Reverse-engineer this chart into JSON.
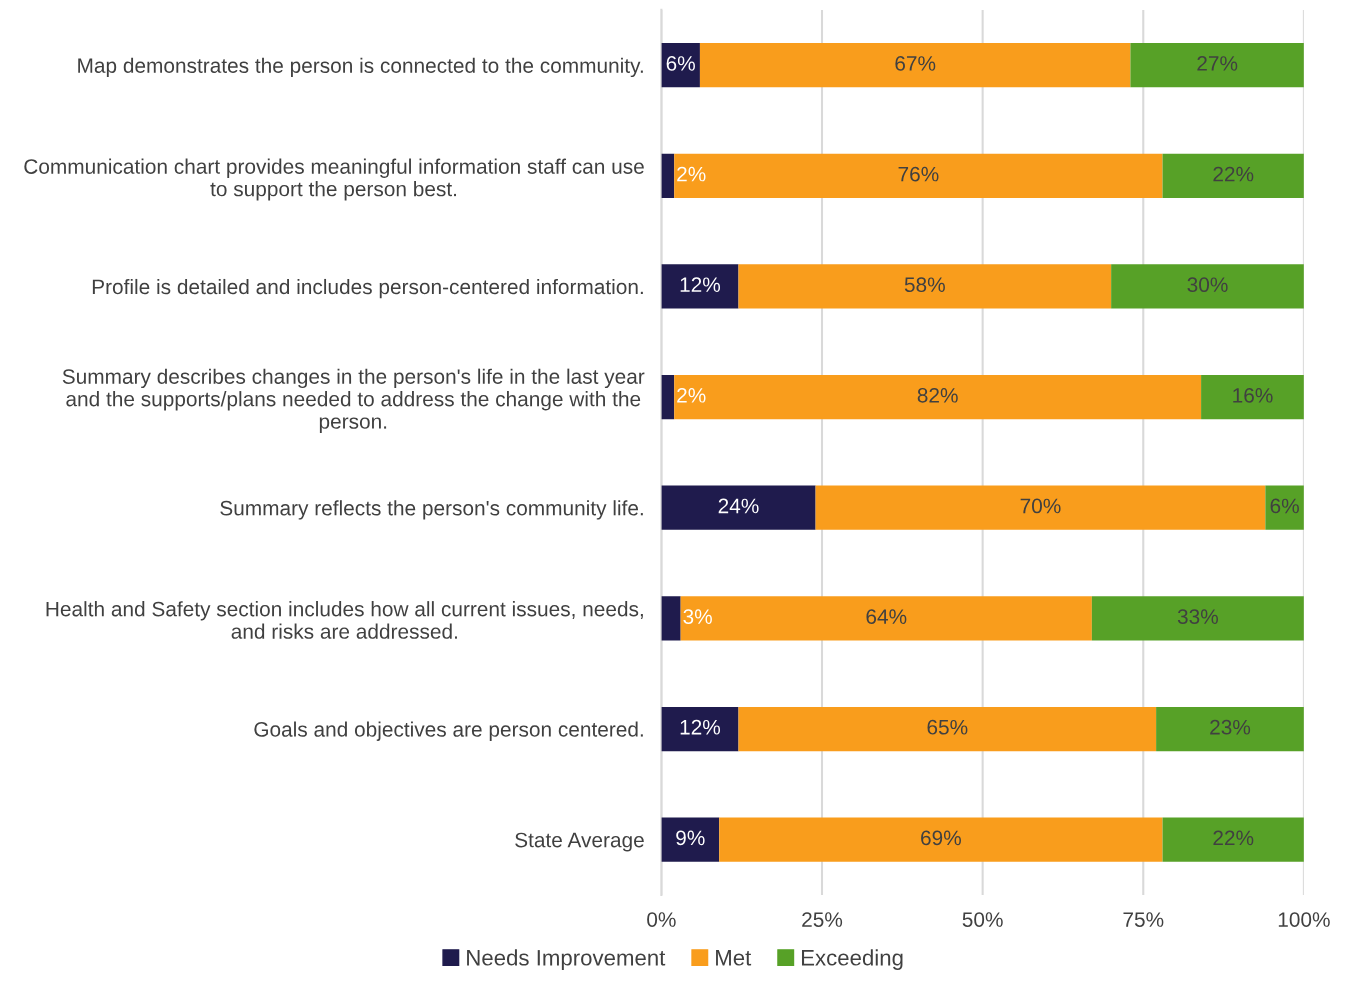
{
  "chart_data": {
    "type": "bar",
    "orientation": "horizontal",
    "stacked": true,
    "categories": [
      "Map demonstrates the person is connected to the community.",
      "Communication chart provides meaningful information staff can use to support the person best.",
      "Profile is detailed and includes person-centered information.",
      "Summary describes changes in the person's life in the last year and the supports/plans needed to address the change with the person.",
      "Summary reflects the person's community life.",
      "Health and Safety section includes how all current issues, needs, and risks are addressed.",
      "Goals and objectives are person centered.",
      "State Average"
    ],
    "series": [
      {
        "name": "Needs Improvement",
        "color": "#1f1b4d",
        "values": [
          6,
          2,
          12,
          2,
          24,
          3,
          12,
          9
        ],
        "value_labels": [
          "6%",
          "2%",
          "12%",
          "2%",
          "24%",
          "3%",
          "12%",
          "9%"
        ]
      },
      {
        "name": "Met",
        "color": "#f99d1c",
        "values": [
          67,
          76,
          58,
          82,
          70,
          64,
          65,
          69
        ],
        "value_labels": [
          "67%",
          "76%",
          "58%",
          "82%",
          "70%",
          "64%",
          "65%",
          "69%"
        ]
      },
      {
        "name": "Exceeding",
        "color": "#57a127",
        "values": [
          27,
          22,
          30,
          16,
          6,
          33,
          23,
          22
        ],
        "value_labels": [
          "27%",
          "22%",
          "30%",
          "16%",
          "6%",
          "33%",
          "23%",
          "22%"
        ]
      }
    ],
    "xlim": [
      0,
      100
    ],
    "xticks": [
      {
        "value": 0,
        "label": "0%"
      },
      {
        "value": 25,
        "label": "25%"
      },
      {
        "value": 50,
        "label": "50%"
      },
      {
        "value": 75,
        "label": "75%"
      },
      {
        "value": 100,
        "label": "100%"
      }
    ],
    "grid": "x",
    "legend": "bottom"
  }
}
